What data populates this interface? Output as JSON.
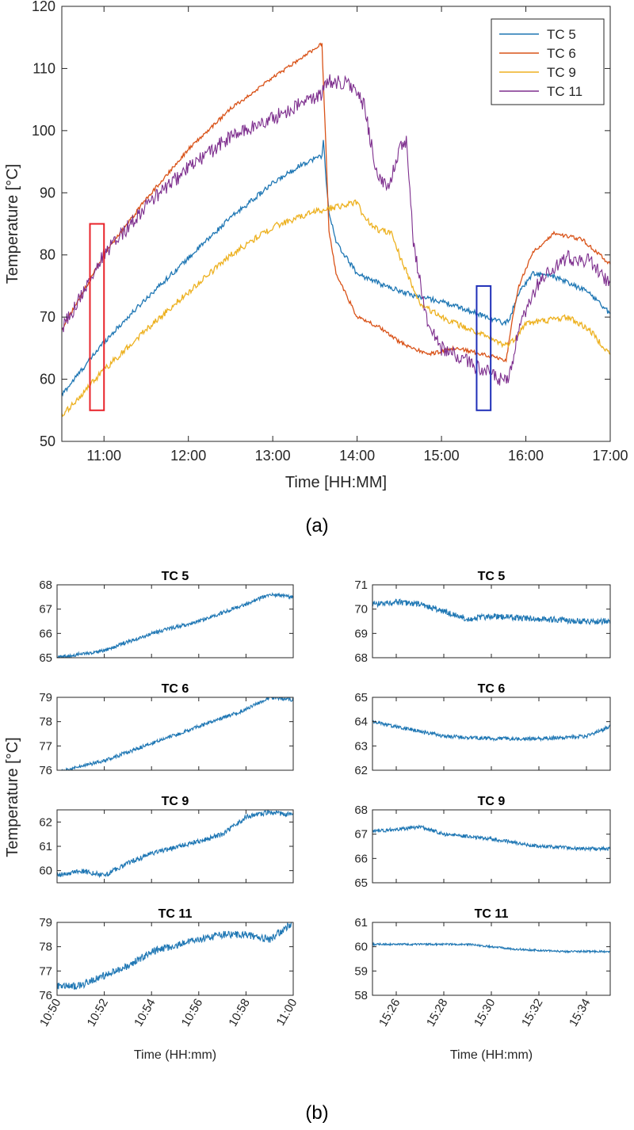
{
  "colors": {
    "tc5": "#1f77b4",
    "tc6": "#d95319",
    "tc9": "#edb120",
    "tc11": "#7e2f8e",
    "red_box": "#e8232a",
    "blue_box": "#1f2fb8"
  },
  "chart_data": [
    {
      "id": "a",
      "type": "line",
      "panel_label": "(a)",
      "xlabel": "Time [HH:MM]",
      "ylabel": "Temperature [°C]",
      "xlim": [
        "10:30",
        "17:00"
      ],
      "ylim": [
        50,
        120
      ],
      "x_ticks": [
        "11:00",
        "12:00",
        "13:00",
        "14:00",
        "15:00",
        "16:00",
        "17:00"
      ],
      "y_ticks": [
        50,
        60,
        70,
        80,
        90,
        100,
        110,
        120
      ],
      "legend": {
        "position": "top-right",
        "entries": [
          "TC 5",
          "TC 6",
          "TC 9",
          "TC 11"
        ]
      },
      "series": [
        {
          "name": "TC 5",
          "color_key": "tc5",
          "noise": 0.4,
          "points": [
            [
              "10:30",
              57.5
            ],
            [
              "11:00",
              66
            ],
            [
              "11:30",
              73
            ],
            [
              "12:00",
              79.5
            ],
            [
              "12:30",
              86
            ],
            [
              "13:00",
              91.5
            ],
            [
              "13:20",
              94.5
            ],
            [
              "13:35",
              96
            ],
            [
              "13:36",
              98.5
            ],
            [
              "13:38",
              92
            ],
            [
              "13:40",
              87
            ],
            [
              "13:45",
              82
            ],
            [
              "14:00",
              77
            ],
            [
              "14:20",
              75
            ],
            [
              "14:40",
              73.5
            ],
            [
              "15:00",
              72.5
            ],
            [
              "15:20",
              71
            ],
            [
              "15:45",
              69
            ],
            [
              "15:48",
              69.5
            ],
            [
              "15:55",
              74
            ],
            [
              "16:05",
              77
            ],
            [
              "16:20",
              76.5
            ],
            [
              "16:45",
              74
            ],
            [
              "17:00",
              70.5
            ]
          ]
        },
        {
          "name": "TC 6",
          "color_key": "tc6",
          "noise": 0.3,
          "points": [
            [
              "10:30",
              68
            ],
            [
              "11:00",
              80
            ],
            [
              "11:30",
              89
            ],
            [
              "12:00",
              97
            ],
            [
              "12:30",
              103.5
            ],
            [
              "13:00",
              108.5
            ],
            [
              "13:35",
              114
            ],
            [
              "13:36",
              108
            ],
            [
              "13:40",
              84
            ],
            [
              "13:45",
              77
            ],
            [
              "14:00",
              70
            ],
            [
              "14:15",
              68.5
            ],
            [
              "14:30",
              66
            ],
            [
              "14:50",
              64
            ],
            [
              "15:10",
              65
            ],
            [
              "15:30",
              64
            ],
            [
              "15:40",
              63.5
            ],
            [
              "15:46",
              63
            ],
            [
              "15:50",
              69
            ],
            [
              "15:55",
              75
            ],
            [
              "16:05",
              80.5
            ],
            [
              "16:20",
              83.5
            ],
            [
              "16:40",
              82.5
            ],
            [
              "17:00",
              78.5
            ]
          ]
        },
        {
          "name": "TC 9",
          "color_key": "tc9",
          "noise": 0.5,
          "points": [
            [
              "10:30",
              54
            ],
            [
              "11:00",
              61.5
            ],
            [
              "11:30",
              68
            ],
            [
              "12:00",
              74
            ],
            [
              "12:30",
              80
            ],
            [
              "13:00",
              84.5
            ],
            [
              "13:30",
              87
            ],
            [
              "13:50",
              88
            ],
            [
              "14:00",
              88.5
            ],
            [
              "14:05",
              86
            ],
            [
              "14:15",
              84
            ],
            [
              "14:25",
              83.5
            ],
            [
              "14:30",
              80
            ],
            [
              "14:45",
              72
            ],
            [
              "15:00",
              70
            ],
            [
              "15:30",
              67
            ],
            [
              "15:45",
              65.5
            ],
            [
              "15:50",
              66
            ],
            [
              "16:00",
              69
            ],
            [
              "16:30",
              70
            ],
            [
              "16:45",
              68
            ],
            [
              "17:00",
              64
            ]
          ]
        },
        {
          "name": "TC 11",
          "color_key": "tc11",
          "noise": 1.2,
          "points": [
            [
              "10:30",
              68
            ],
            [
              "11:00",
              80
            ],
            [
              "11:30",
              88
            ],
            [
              "12:00",
              94
            ],
            [
              "12:30",
              99
            ],
            [
              "13:00",
              102
            ],
            [
              "13:35",
              106
            ],
            [
              "13:40",
              108
            ],
            [
              "13:55",
              107.5
            ],
            [
              "14:05",
              104
            ],
            [
              "14:15",
              92
            ],
            [
              "14:22",
              91
            ],
            [
              "14:30",
              97
            ],
            [
              "14:35",
              98
            ],
            [
              "14:40",
              82
            ],
            [
              "14:50",
              69
            ],
            [
              "15:00",
              65
            ],
            [
              "15:30",
              61.5
            ],
            [
              "15:45",
              59.5
            ],
            [
              "15:48",
              60
            ],
            [
              "15:55",
              68
            ],
            [
              "16:10",
              76
            ],
            [
              "16:30",
              79.5
            ],
            [
              "16:45",
              79
            ],
            [
              "17:00",
              75.5
            ]
          ]
        }
      ],
      "highlight_boxes": [
        {
          "color_key": "red_box",
          "x_range": [
            "10:50",
            "11:00"
          ],
          "y_range": [
            55,
            85
          ]
        },
        {
          "color_key": "blue_box",
          "x_range": [
            "15:25",
            "15:35"
          ],
          "y_range": [
            55,
            75
          ]
        }
      ]
    },
    {
      "id": "b",
      "type": "line",
      "panel_label": "(b)",
      "ylabel": "Temperature [°C]",
      "columns": [
        {
          "xlabel": "Time (HH:mm)",
          "xlim": [
            "10:50",
            "11:00"
          ],
          "x_ticks": [
            "10:50",
            "10:52",
            "10:54",
            "10:56",
            "10:58",
            "11:00"
          ]
        },
        {
          "xlabel": "Time (HH:mm)",
          "xlim": [
            "15:25",
            "15:35"
          ],
          "x_ticks": [
            "15:26",
            "15:28",
            "15:30",
            "15:32",
            "15:34"
          ]
        }
      ],
      "subplots": [
        {
          "title": "TC 5",
          "col": 0,
          "row": 0,
          "ylim": [
            65,
            68
          ],
          "y_ticks": [
            65,
            66,
            67,
            68
          ],
          "noise": 0.15,
          "points": [
            [
              "10:50",
              65
            ],
            [
              "10:52",
              65.3
            ],
            [
              "10:54",
              66
            ],
            [
              "10:56",
              66.5
            ],
            [
              "10:58",
              67.2
            ],
            [
              "10:59",
              67.6
            ],
            [
              "11:00",
              67.5
            ]
          ]
        },
        {
          "title": "TC 6",
          "col": 0,
          "row": 1,
          "ylim": [
            76,
            79
          ],
          "y_ticks": [
            76,
            77,
            78,
            79
          ],
          "noise": 0.15,
          "points": [
            [
              "10:50",
              75.9
            ],
            [
              "10:52",
              76.4
            ],
            [
              "10:54",
              77.1
            ],
            [
              "10:56",
              77.8
            ],
            [
              "10:58",
              78.5
            ],
            [
              "10:59",
              79
            ],
            [
              "11:00",
              78.9
            ]
          ]
        },
        {
          "title": "TC 9",
          "col": 0,
          "row": 2,
          "ylim": [
            59.5,
            62.5
          ],
          "y_ticks": [
            60,
            61,
            62
          ],
          "noise": 0.2,
          "points": [
            [
              "10:50",
              59.8
            ],
            [
              "10:51",
              60
            ],
            [
              "10:52",
              59.8
            ],
            [
              "10:53",
              60.3
            ],
            [
              "10:54",
              60.7
            ],
            [
              "10:56",
              61.2
            ],
            [
              "10:57",
              61.5
            ],
            [
              "10:58",
              62.2
            ],
            [
              "10:59",
              62.4
            ],
            [
              "11:00",
              62.3
            ]
          ]
        },
        {
          "title": "TC 11",
          "col": 0,
          "row": 3,
          "ylim": [
            76,
            79
          ],
          "y_ticks": [
            76,
            77,
            78,
            79
          ],
          "noise": 0.3,
          "points": [
            [
              "10:50",
              76.4
            ],
            [
              "10:51",
              76.4
            ],
            [
              "10:52",
              76.8
            ],
            [
              "10:53",
              77.2
            ],
            [
              "10:54",
              77.8
            ],
            [
              "10:56",
              78.3
            ],
            [
              "10:57",
              78.5
            ],
            [
              "10:58",
              78.5
            ],
            [
              "10:59",
              78.3
            ],
            [
              "11:00",
              79
            ]
          ]
        },
        {
          "title": "TC 5",
          "col": 1,
          "row": 0,
          "ylim": [
            68,
            71
          ],
          "y_ticks": [
            68,
            69,
            70,
            71
          ],
          "noise": 0.25,
          "points": [
            [
              "15:25",
              70.2
            ],
            [
              "15:26",
              70.3
            ],
            [
              "15:27",
              70.2
            ],
            [
              "15:28",
              69.9
            ],
            [
              "15:29",
              69.6
            ],
            [
              "15:30",
              69.7
            ],
            [
              "15:32",
              69.6
            ],
            [
              "15:34",
              69.5
            ],
            [
              "15:35",
              69.5
            ]
          ]
        },
        {
          "title": "TC 6",
          "col": 1,
          "row": 1,
          "ylim": [
            62,
            65
          ],
          "y_ticks": [
            62,
            63,
            64,
            65
          ],
          "noise": 0.15,
          "points": [
            [
              "15:25",
              64
            ],
            [
              "15:26",
              63.8
            ],
            [
              "15:28",
              63.4
            ],
            [
              "15:30",
              63.3
            ],
            [
              "15:32",
              63.3
            ],
            [
              "15:34",
              63.4
            ],
            [
              "15:35",
              63.8
            ]
          ]
        },
        {
          "title": "TC 9",
          "col": 1,
          "row": 2,
          "ylim": [
            65,
            68
          ],
          "y_ticks": [
            65,
            66,
            67,
            68
          ],
          "noise": 0.15,
          "points": [
            [
              "15:25",
              67.1
            ],
            [
              "15:26",
              67.2
            ],
            [
              "15:27",
              67.3
            ],
            [
              "15:28",
              67
            ],
            [
              "15:30",
              66.8
            ],
            [
              "15:32",
              66.5
            ],
            [
              "15:34",
              66.4
            ],
            [
              "15:35",
              66.4
            ]
          ]
        },
        {
          "title": "TC 11",
          "col": 1,
          "row": 3,
          "ylim": [
            58,
            61
          ],
          "y_ticks": [
            58,
            59,
            60,
            61
          ],
          "noise": 0.08,
          "points": [
            [
              "15:25",
              60.1
            ],
            [
              "15:27",
              60.1
            ],
            [
              "15:29",
              60.1
            ],
            [
              "15:31",
              59.9
            ],
            [
              "15:33",
              59.8
            ],
            [
              "15:35",
              59.8
            ]
          ]
        }
      ]
    }
  ]
}
